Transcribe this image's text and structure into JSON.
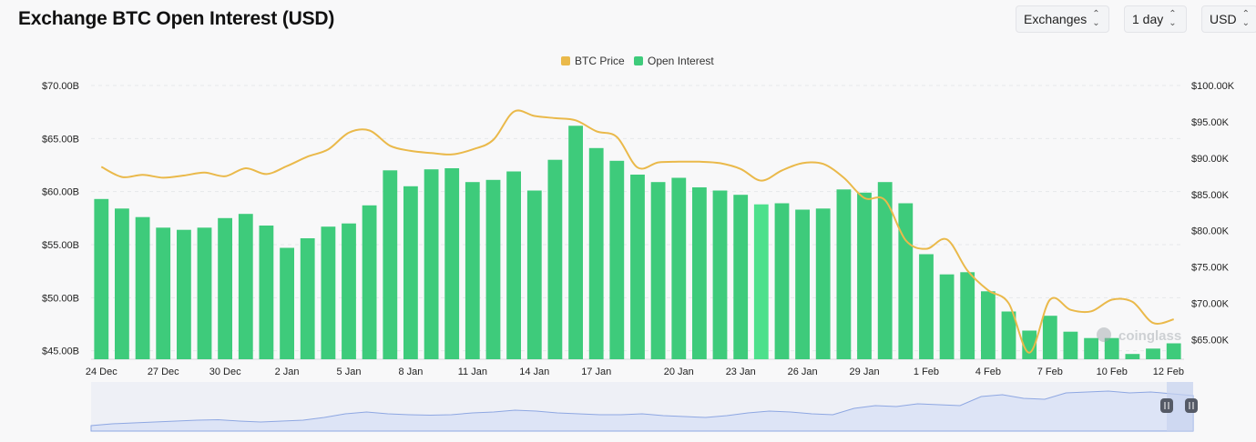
{
  "header": {
    "title": "Exchange BTC Open Interest (USD)",
    "controls": [
      {
        "label": "Exchanges",
        "icon": "chevron-updown-icon"
      },
      {
        "label": "1 day",
        "icon": "chevron-updown-icon"
      },
      {
        "label": "USD",
        "icon": "chevron-updown-icon"
      }
    ]
  },
  "watermark": "coinglass",
  "chart_data": {
    "type": "bar+line",
    "title": "Exchange BTC Open Interest (USD)",
    "legend": {
      "placement": "top-center",
      "items": [
        {
          "name": "BTC Price",
          "color": "#eab94a"
        },
        {
          "name": "Open Interest",
          "color": "#3ecb7b"
        }
      ]
    },
    "grid": "horizontal-dashed",
    "x_labels": [
      "24 Dec",
      "27 Dec",
      "30 Dec",
      "2 Jan",
      "5 Jan",
      "8 Jan",
      "11 Jan",
      "14 Jan",
      "17 Jan",
      "20 Jan",
      "23 Jan",
      "26 Jan",
      "29 Jan",
      "1 Feb",
      "4 Feb",
      "7 Feb",
      "10 Feb",
      "12 Feb"
    ],
    "y_left": {
      "ticks": [
        "$45.00B",
        "$50.00B",
        "$55.00B",
        "$60.00B",
        "$65.00B",
        "$70.00B"
      ],
      "range": [
        44.2,
        70
      ]
    },
    "y_right": {
      "ticks": [
        "$65.00K",
        "$70.00K",
        "$75.00K",
        "$80.00K",
        "$85.00K",
        "$90.00K",
        "$95.00K",
        "$100.00K"
      ],
      "range": [
        62.3,
        100
      ]
    },
    "series": [
      {
        "name": "Open Interest",
        "type": "bar",
        "color": "#3ecb7b",
        "highlight_color": "#4de08c",
        "highlight_index": 32,
        "unit": "B USD",
        "values": [
          59.3,
          58.4,
          57.6,
          56.6,
          56.4,
          56.6,
          57.5,
          57.9,
          56.8,
          54.7,
          55.6,
          56.7,
          57.0,
          58.7,
          62.0,
          60.5,
          62.1,
          62.2,
          60.9,
          61.1,
          61.9,
          60.1,
          63.0,
          66.2,
          64.1,
          62.9,
          61.6,
          60.9,
          61.3,
          60.4,
          60.1,
          59.7,
          58.8,
          58.9,
          58.3,
          58.4,
          60.2,
          59.9,
          60.9,
          58.9,
          54.1,
          52.2,
          52.4,
          50.6,
          48.7,
          46.9,
          48.3,
          46.8,
          46.2,
          46.2,
          44.7,
          45.2,
          45.7
        ]
      },
      {
        "name": "BTC Price",
        "type": "line",
        "color": "#eab94a",
        "unit": "K USD",
        "values": [
          88.8,
          87.4,
          87.7,
          87.3,
          87.6,
          88.0,
          87.5,
          88.6,
          87.8,
          88.9,
          90.2,
          91.2,
          93.5,
          93.8,
          91.7,
          91.0,
          90.7,
          90.5,
          91.2,
          92.5,
          96.4,
          95.8,
          95.5,
          95.2,
          93.7,
          92.9,
          88.7,
          89.4,
          89.5,
          89.5,
          89.3,
          88.5,
          86.9,
          88.3,
          89.3,
          89.2,
          87.3,
          84.5,
          84.2,
          78.7,
          77.5,
          78.8,
          74.5,
          71.8,
          70.0,
          63.2,
          70.5,
          69.1,
          68.9,
          70.5,
          70.2,
          67.3,
          67.8
        ]
      }
    ],
    "navigator": {
      "type": "area",
      "values": [
        0.12,
        0.16,
        0.18,
        0.2,
        0.22,
        0.24,
        0.25,
        0.22,
        0.2,
        0.22,
        0.24,
        0.3,
        0.38,
        0.42,
        0.38,
        0.36,
        0.35,
        0.36,
        0.4,
        0.42,
        0.46,
        0.44,
        0.4,
        0.38,
        0.36,
        0.36,
        0.38,
        0.34,
        0.32,
        0.3,
        0.34,
        0.4,
        0.44,
        0.42,
        0.38,
        0.36,
        0.5,
        0.56,
        0.54,
        0.6,
        0.58,
        0.56,
        0.76,
        0.8,
        0.72,
        0.7,
        0.84,
        0.86,
        0.88,
        0.84,
        0.86,
        0.82,
        0.78
      ]
    }
  }
}
